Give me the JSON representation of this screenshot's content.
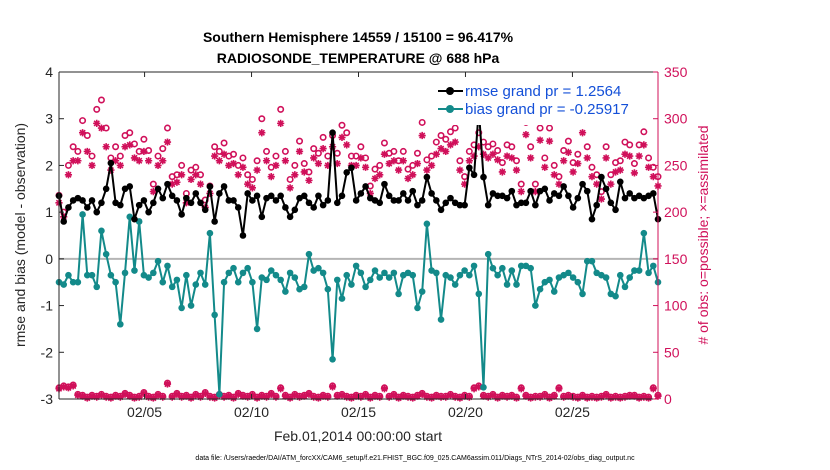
{
  "chart_data": {
    "type": "line",
    "title_line1": "Southern Hemisphere 14559 / 15100 = 96.417%",
    "title_line2": "RADIOSONDE_TEMPERATURE @ 688 hPa",
    "ylabel_left": "rmse and bias (model - observation)",
    "ylabel_right": "# of obs: o=possible; ×=assimilated",
    "xlabel": "Feb.01,2014 00:00:00 start",
    "footnote": "data file: /Users/raeder/DAI/ATM_forcXX/CAM6_setup/f.e21.FHIST_BGC.f09_025.CAM6assim.011/Diags_NTrS_2014-02/obs_diag_output.nc",
    "x_tick_labels": [
      "02/05",
      "02/10",
      "02/15",
      "02/20",
      "02/25"
    ],
    "x_tick_days": [
      5,
      10,
      15,
      20,
      25
    ],
    "xlim": [
      1,
      29
    ],
    "ylim_left": [
      -3,
      4
    ],
    "y_ticks_left": [
      "-3",
      "-2",
      "-1",
      "0",
      "1",
      "2",
      "3",
      "4"
    ],
    "ylim_right": [
      0,
      350
    ],
    "y_ticks_right": [
      "0",
      "50",
      "100",
      "150",
      "200",
      "250",
      "300",
      "350"
    ],
    "legend": {
      "rmse_label": "rmse grand pr = 1.2564",
      "bias_label": "bias grand pr = -0.25917",
      "placement": "top-right"
    },
    "series": [
      {
        "name": "rmse",
        "color": "#000000",
        "values": [
          1.35,
          0.8,
          1.1,
          1.25,
          1.3,
          1.25,
          1.1,
          1.25,
          1.0,
          1.2,
          1.5,
          2.05,
          1.2,
          1.15,
          1.5,
          1.55,
          0.85,
          1.15,
          1.25,
          1.0,
          1.2,
          1.5,
          1.3,
          1.6,
          1.35,
          1.25,
          0.95,
          1.3,
          1.2,
          1.4,
          1.2,
          1.05,
          1.55,
          0.8,
          1.4,
          1.55,
          1.25,
          1.25,
          1.1,
          0.5,
          1.4,
          1.25,
          1.35,
          0.9,
          1.3,
          1.35,
          1.25,
          1.35,
          1.1,
          0.9,
          1.05,
          1.3,
          1.35,
          1.2,
          1.1,
          1.35,
          1.15,
          1.25,
          2.7,
          1.2,
          1.35,
          1.85,
          1.95,
          1.25,
          1.4,
          1.55,
          1.3,
          1.25,
          1.2,
          1.6,
          1.35,
          1.25,
          1.25,
          1.4,
          1.25,
          1.45,
          1.15,
          1.25,
          1.75,
          1.4,
          1.25,
          1.05,
          1.2,
          1.3,
          1.2,
          1.15,
          1.15,
          1.95,
          1.8,
          3.2,
          1.75,
          1.15,
          1.4,
          1.35,
          1.35,
          1.3,
          1.45,
          1.15,
          1.2,
          1.2,
          1.45,
          1.15,
          1.45,
          1.5,
          1.25,
          1.4,
          1.35,
          1.55,
          1.35,
          1.1,
          1.3,
          1.6,
          1.45,
          0.85,
          1.15,
          1.75,
          1.5,
          1.2,
          1.05,
          1.65,
          1.3,
          1.4,
          1.3,
          1.35,
          1.3,
          1.35,
          1.4,
          0.85
        ]
      },
      {
        "name": "bias",
        "color": "#138a8a",
        "values": [
          -0.5,
          -0.55,
          -0.35,
          -0.5,
          -0.5,
          0.95,
          -0.35,
          -0.35,
          -0.6,
          0.6,
          0.1,
          -0.35,
          -0.5,
          -1.4,
          -0.3,
          0.9,
          -0.25,
          0.8,
          -0.35,
          -0.4,
          -0.3,
          -0.05,
          -0.5,
          -0.15,
          -0.6,
          -0.45,
          -1.05,
          -0.35,
          -1.0,
          -0.55,
          -0.3,
          -0.55,
          0.55,
          -1.2,
          -2.9,
          -0.5,
          -0.3,
          -0.2,
          -0.5,
          -0.3,
          -0.2,
          -0.5,
          -1.5,
          -0.4,
          -0.45,
          -0.25,
          -0.35,
          -0.45,
          -0.7,
          -0.3,
          -0.4,
          -0.65,
          -0.6,
          0.1,
          -0.25,
          -0.2,
          -0.3,
          -0.65,
          -2.15,
          -0.45,
          -0.85,
          -0.35,
          -0.55,
          -0.15,
          -0.3,
          -0.6,
          -0.45,
          -0.25,
          -0.4,
          -0.3,
          -0.4,
          -0.3,
          -0.75,
          -0.35,
          -0.3,
          -0.35,
          -1.05,
          -0.7,
          0.75,
          -0.25,
          -0.3,
          -1.3,
          -0.35,
          -0.4,
          -0.55,
          -0.35,
          -0.25,
          -0.35,
          -0.15,
          -0.75,
          -2.75,
          0.1,
          -0.2,
          -0.35,
          -0.2,
          -0.55,
          -0.25,
          -0.55,
          -0.15,
          -0.15,
          -0.2,
          -1.0,
          -0.65,
          -0.5,
          -0.45,
          -0.7,
          -0.4,
          -0.35,
          -0.3,
          -0.4,
          -0.5,
          -0.75,
          -0.05,
          -0.05,
          -0.3,
          -0.35,
          -0.4,
          -0.75,
          -0.8,
          -0.35,
          -0.6,
          -0.4,
          -0.25,
          -0.25,
          0.55,
          -0.3,
          -0.15,
          -0.5
        ]
      },
      {
        "name": "obs possible",
        "color": "#d0105a",
        "axis": "right",
        "values": [
          218,
          200,
          250,
          270,
          265,
          298,
          282,
          260,
          310,
          320,
          290,
          258,
          270,
          260,
          282,
          285,
          273,
          265,
          278,
          266,
          230,
          260,
          268,
          290,
          238,
          240,
          250,
          220,
          245,
          248,
          240,
          213,
          228,
          270,
          265,
          274,
          260,
          262,
          250,
          258,
          240,
          235,
          255,
          300,
          265,
          248,
          260,
          310,
          265,
          235,
          250,
          276,
          252,
          243,
          268,
          263,
          280,
          260,
          282,
          263,
          293,
          285,
          260,
          260,
          270,
          258,
          228,
          246,
          250,
          274,
          263,
          265,
          255,
          265,
          246,
          250,
          263,
          296,
          256,
          260,
          275,
          282,
          278,
          286,
          290,
          255,
          238,
          265,
          272,
          285,
          275,
          270,
          273,
          266,
          253,
          272,
          270,
          255,
          230,
          296,
          270,
          230,
          290,
          258,
          290,
          250,
          238,
          266,
          276,
          253,
          262,
          300,
          270,
          248,
          240,
          222,
          270,
          240,
          253,
          255,
          275,
          272,
          252,
          272,
          286,
          258,
          248,
          238
        ]
      },
      {
        "name": "obs assimilated",
        "color": "#d0105a",
        "axis": "right",
        "values": [
          210,
          195,
          240,
          255,
          255,
          285,
          265,
          250,
          295,
          290,
          270,
          245,
          255,
          250,
          270,
          272,
          258,
          255,
          265,
          255,
          222,
          250,
          255,
          275,
          230,
          232,
          240,
          210,
          235,
          240,
          230,
          205,
          220,
          260,
          255,
          262,
          250,
          252,
          240,
          248,
          230,
          226,
          245,
          285,
          255,
          238,
          250,
          295,
          255,
          226,
          240,
          265,
          243,
          234,
          258,
          252,
          268,
          250,
          270,
          252,
          280,
          272,
          250,
          250,
          258,
          248,
          220,
          236,
          240,
          262,
          252,
          255,
          245,
          255,
          236,
          240,
          252,
          282,
          245,
          250,
          262,
          268,
          265,
          272,
          275,
          245,
          230,
          255,
          260,
          270,
          262,
          258,
          262,
          256,
          243,
          260,
          258,
          245,
          222,
          283,
          258,
          222,
          277,
          248,
          276,
          240,
          230,
          255,
          264,
          243,
          252,
          285,
          258,
          238,
          230,
          214,
          258,
          230,
          243,
          245,
          262,
          260,
          242,
          260,
          272,
          248,
          238,
          228
        ]
      },
      {
        "name": "obs low possible",
        "color": "#d0105a",
        "axis": "right",
        "values": [
          12,
          14,
          13,
          15,
          5,
          4,
          2,
          4,
          3,
          5,
          3,
          2,
          4,
          3,
          6,
          4,
          2,
          3,
          7,
          3,
          2,
          5,
          3,
          17,
          3,
          6,
          3,
          4,
          2,
          5,
          3,
          7,
          3,
          2,
          5,
          3,
          4,
          2,
          6,
          4,
          3,
          5,
          2,
          4,
          3,
          6,
          3,
          12,
          4,
          2,
          5,
          3,
          4,
          6,
          3,
          2,
          4,
          3,
          14,
          4,
          5,
          3,
          2,
          4,
          3,
          5,
          2,
          4,
          3,
          12,
          3,
          5,
          2,
          4,
          3,
          2,
          4,
          6,
          3,
          2,
          4,
          3,
          3,
          5,
          3,
          2,
          4,
          3,
          12,
          14,
          4,
          3,
          5,
          2,
          4,
          3,
          4,
          2,
          12,
          4,
          2,
          3,
          3,
          5,
          2,
          4,
          12,
          3,
          4,
          3,
          2,
          4,
          2,
          3,
          2,
          3,
          5,
          2,
          3,
          2,
          3,
          4,
          4,
          2,
          3,
          2,
          12,
          4
        ]
      },
      {
        "name": "obs low assimilated",
        "color": "#d0105a",
        "axis": "right",
        "values": [
          11,
          13,
          12,
          14,
          4,
          3,
          1,
          3,
          2,
          4,
          2,
          1,
          3,
          2,
          5,
          3,
          1,
          2,
          6,
          2,
          1,
          4,
          2,
          16,
          2,
          5,
          2,
          3,
          1,
          4,
          2,
          6,
          2,
          1,
          4,
          2,
          3,
          1,
          5,
          3,
          2,
          4,
          1,
          3,
          2,
          5,
          2,
          11,
          3,
          1,
          4,
          2,
          3,
          5,
          2,
          1,
          3,
          2,
          13,
          3,
          4,
          2,
          1,
          3,
          2,
          4,
          1,
          3,
          2,
          11,
          2,
          4,
          1,
          3,
          2,
          1,
          3,
          5,
          2,
          1,
          3,
          2,
          2,
          4,
          2,
          1,
          3,
          2,
          11,
          13,
          3,
          2,
          4,
          1,
          3,
          2,
          3,
          1,
          11,
          3,
          1,
          2,
          2,
          4,
          1,
          3,
          11,
          2,
          3,
          2,
          1,
          3,
          1,
          2,
          1,
          2,
          4,
          1,
          2,
          1,
          2,
          3,
          3,
          1,
          2,
          1,
          11,
          3
        ]
      }
    ]
  }
}
